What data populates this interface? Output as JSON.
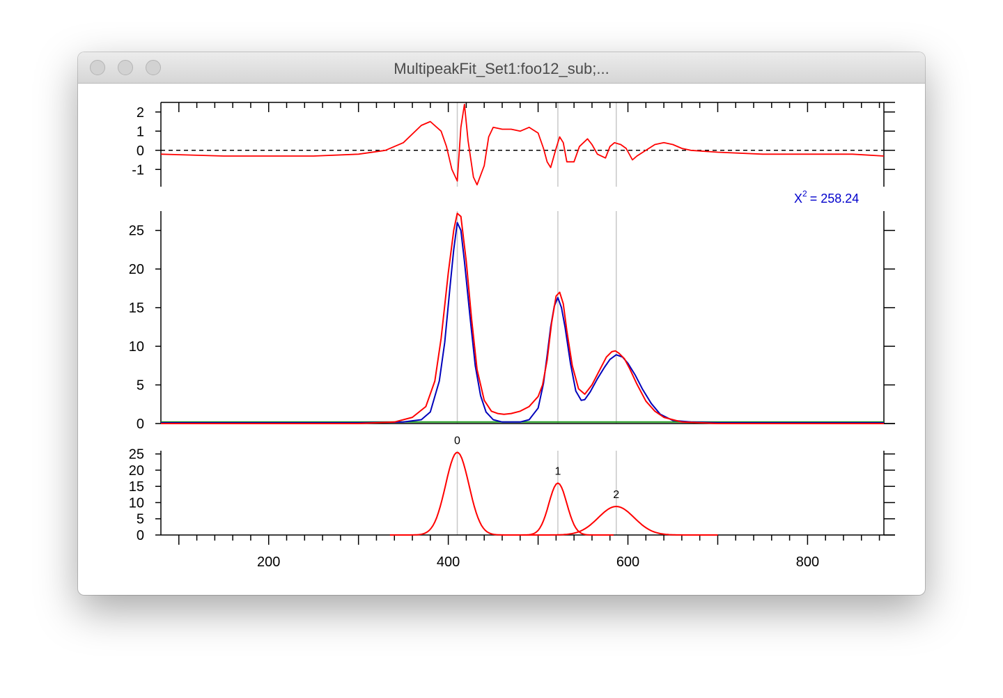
{
  "window": {
    "title": "MultipeakFit_Set1:foo12_sub;..."
  },
  "annotation": {
    "chi_label": "X",
    "chi_exponent": "2",
    "chi_value": "= 258.24"
  },
  "colors": {
    "data": "#ff0000",
    "fit": "#0000bb",
    "baseline": "#1a9a1a",
    "peak_marker": "#c8c8c8",
    "chi_text": "#0000cc"
  },
  "chart_data": [
    {
      "type": "line",
      "panel": "residual",
      "xlim": [
        80,
        885
      ],
      "ylim": [
        -1.9,
        2.5
      ],
      "yticks": [
        -1,
        0,
        1,
        2
      ],
      "ytick_labels": [
        "-1",
        "0",
        "1",
        "2"
      ],
      "zero_line": "dashed",
      "series": [
        {
          "x": [
            80,
            150,
            200,
            250,
            300,
            330,
            350,
            370,
            380,
            392,
            398,
            404,
            410,
            414,
            418,
            422,
            428,
            432,
            440,
            445,
            450,
            460,
            470,
            480,
            490,
            500,
            506,
            510,
            514,
            520,
            524,
            528,
            532,
            540,
            546,
            555,
            560,
            566,
            575,
            580,
            585,
            592,
            598,
            605,
            610,
            620,
            630,
            640,
            650,
            660,
            670,
            700,
            750,
            800,
            850,
            885
          ],
          "y": [
            -0.2,
            -0.3,
            -0.3,
            -0.3,
            -0.2,
            0.0,
            0.4,
            1.3,
            1.5,
            1.0,
            0.2,
            -1.0,
            -1.6,
            1.2,
            2.4,
            0.5,
            -1.4,
            -1.8,
            -0.8,
            0.7,
            1.2,
            1.1,
            1.1,
            1.0,
            1.2,
            0.9,
            0.1,
            -0.6,
            -0.9,
            0.1,
            0.7,
            0.4,
            -0.6,
            -0.6,
            0.2,
            0.6,
            0.3,
            -0.2,
            -0.4,
            0.2,
            0.4,
            0.3,
            0.1,
            -0.5,
            -0.3,
            0.0,
            0.3,
            0.4,
            0.3,
            0.1,
            0.0,
            -0.1,
            -0.2,
            -0.2,
            -0.2,
            -0.3
          ]
        }
      ]
    },
    {
      "type": "line",
      "panel": "fit",
      "xlim": [
        80,
        885
      ],
      "ylim": [
        0,
        27.5
      ],
      "yticks": [
        0,
        5,
        10,
        15,
        20,
        25
      ],
      "ytick_labels": [
        "0",
        "5",
        "10",
        "15",
        "20",
        "25"
      ],
      "peak_positions": [
        410,
        522,
        587
      ],
      "series": [
        {
          "name": "data",
          "x": [
            80,
            200,
            300,
            340,
            360,
            375,
            385,
            392,
            400,
            406,
            410,
            414,
            420,
            426,
            432,
            440,
            448,
            455,
            462,
            470,
            480,
            490,
            500,
            505,
            510,
            515,
            520,
            524,
            528,
            532,
            538,
            545,
            552,
            560,
            568,
            576,
            582,
            586,
            590,
            596,
            602,
            610,
            620,
            630,
            640,
            660,
            700,
            800,
            885
          ],
          "y": [
            0,
            0,
            0,
            0.2,
            0.8,
            2.2,
            5.5,
            11.0,
            19.5,
            25.0,
            27.2,
            26.8,
            21.0,
            13.5,
            7.0,
            3.0,
            1.6,
            1.3,
            1.2,
            1.3,
            1.6,
            2.2,
            3.5,
            5.0,
            8.2,
            13.0,
            16.5,
            17.0,
            15.5,
            12.0,
            7.5,
            4.5,
            3.8,
            5.0,
            6.8,
            8.6,
            9.3,
            9.4,
            9.1,
            8.4,
            7.1,
            5.1,
            2.9,
            1.6,
            0.8,
            0.2,
            0,
            0,
            0
          ]
        },
        {
          "name": "fit",
          "x": [
            80,
            300,
            350,
            370,
            380,
            390,
            396,
            402,
            406,
            410,
            414,
            418,
            424,
            430,
            436,
            442,
            450,
            460,
            480,
            490,
            500,
            506,
            510,
            514,
            518,
            522,
            526,
            530,
            536,
            542,
            548,
            552,
            558,
            566,
            574,
            580,
            587,
            594,
            600,
            608,
            616,
            626,
            636,
            650,
            670,
            700,
            885
          ],
          "y": [
            0.1,
            0.1,
            0.2,
            0.5,
            1.5,
            5.5,
            10.5,
            17.8,
            22.5,
            26.0,
            25.0,
            21.0,
            14.0,
            7.5,
            3.6,
            1.5,
            0.5,
            0.2,
            0.2,
            0.5,
            2.0,
            5.2,
            8.8,
            12.5,
            15.2,
            16.3,
            15.0,
            12.5,
            7.8,
            4.2,
            3.0,
            3.1,
            4.1,
            5.8,
            7.3,
            8.3,
            8.9,
            8.6,
            7.8,
            6.3,
            4.5,
            2.6,
            1.2,
            0.4,
            0.2,
            0.1,
            0.1
          ]
        },
        {
          "name": "baseline",
          "x": [
            80,
            885
          ],
          "y": [
            0.2,
            0.2
          ]
        }
      ]
    },
    {
      "type": "line",
      "panel": "peaks",
      "xlim": [
        80,
        885
      ],
      "ylim": [
        0,
        26
      ],
      "yticks": [
        0,
        5,
        10,
        15,
        20,
        25
      ],
      "ytick_labels": [
        "0",
        "5",
        "10",
        "15",
        "20",
        "25"
      ],
      "xticks": [
        200,
        400,
        600,
        800
      ],
      "xtick_labels": [
        "200",
        "400",
        "600",
        "800"
      ],
      "peak_labels": [
        "0",
        "1",
        "2"
      ],
      "peak_positions": [
        410,
        522,
        587
      ],
      "series": [
        {
          "label": "0",
          "center": 410,
          "height": 25.5,
          "sigma": 13,
          "xrange": [
            335,
            485
          ]
        },
        {
          "label": "1",
          "center": 522,
          "height": 16.0,
          "sigma": 10,
          "xrange": [
            460,
            585
          ]
        },
        {
          "label": "2",
          "center": 587,
          "height": 8.8,
          "sigma": 20,
          "xrange": [
            480,
            700
          ]
        }
      ]
    }
  ]
}
